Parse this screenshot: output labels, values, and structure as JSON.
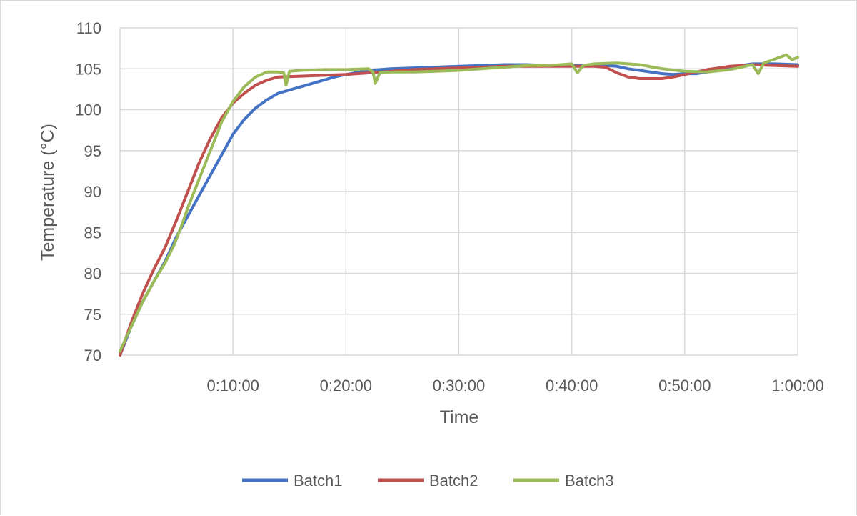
{
  "chart_data": {
    "type": "line",
    "title": "",
    "xlabel": "Time",
    "ylabel": "Temperature (°C)",
    "xlim": [
      0,
      60
    ],
    "ylim": [
      70,
      110
    ],
    "x_unit": "minutes",
    "x_ticks": [
      {
        "value": 10,
        "label": "0:10:00"
      },
      {
        "value": 20,
        "label": "0:20:00"
      },
      {
        "value": 30,
        "label": "0:30:00"
      },
      {
        "value": 40,
        "label": "0:40:00"
      },
      {
        "value": 50,
        "label": "0:50:00"
      },
      {
        "value": 60,
        "label": "1:00:00"
      }
    ],
    "y_ticks": [
      70,
      75,
      80,
      85,
      90,
      95,
      100,
      105,
      110
    ],
    "grid": true,
    "legend_position": "bottom",
    "series": [
      {
        "name": "Batch1",
        "color": "#4472C4",
        "points": [
          [
            0,
            70
          ],
          [
            1,
            73.5
          ],
          [
            2,
            76.5
          ],
          [
            3,
            79
          ],
          [
            4,
            81.5
          ],
          [
            5,
            84.5
          ],
          [
            6,
            87
          ],
          [
            7,
            89.5
          ],
          [
            8,
            92
          ],
          [
            9,
            94.5
          ],
          [
            10,
            97
          ],
          [
            11,
            98.8
          ],
          [
            12,
            100.2
          ],
          [
            13,
            101.2
          ],
          [
            14,
            102
          ],
          [
            15,
            102.4
          ],
          [
            16,
            102.8
          ],
          [
            17,
            103.2
          ],
          [
            18,
            103.6
          ],
          [
            19,
            104
          ],
          [
            20,
            104.3
          ],
          [
            22,
            104.8
          ],
          [
            24,
            105
          ],
          [
            26,
            105.1
          ],
          [
            28,
            105.2
          ],
          [
            30,
            105.3
          ],
          [
            32,
            105.4
          ],
          [
            34,
            105.5
          ],
          [
            36,
            105.5
          ],
          [
            38,
            105.4
          ],
          [
            40,
            105.4
          ],
          [
            42,
            105.5
          ],
          [
            44,
            105.3
          ],
          [
            45,
            105
          ],
          [
            46,
            104.8
          ],
          [
            47,
            104.6
          ],
          [
            48,
            104.4
          ],
          [
            49,
            104.3
          ],
          [
            50,
            104.4
          ],
          [
            51,
            104.4
          ],
          [
            52,
            104.6
          ],
          [
            53,
            104.9
          ],
          [
            54,
            105.2
          ],
          [
            55,
            105.4
          ],
          [
            56,
            105.6
          ],
          [
            58,
            105.6
          ],
          [
            60,
            105.5
          ]
        ]
      },
      {
        "name": "Batch2",
        "color": "#C0504D",
        "points": [
          [
            0,
            70
          ],
          [
            1,
            74
          ],
          [
            2,
            77.5
          ],
          [
            3,
            80.5
          ],
          [
            4,
            83.2
          ],
          [
            5,
            86.5
          ],
          [
            6,
            90
          ],
          [
            7,
            93.5
          ],
          [
            8,
            96.5
          ],
          [
            9,
            99
          ],
          [
            10,
            100.8
          ],
          [
            11,
            102
          ],
          [
            12,
            103
          ],
          [
            13,
            103.6
          ],
          [
            14,
            104
          ],
          [
            16,
            104.1
          ],
          [
            18,
            104.2
          ],
          [
            20,
            104.3
          ],
          [
            22,
            104.5
          ],
          [
            24,
            104.7
          ],
          [
            26,
            104.9
          ],
          [
            28,
            105
          ],
          [
            30,
            105.1
          ],
          [
            32,
            105.2
          ],
          [
            34,
            105.3
          ],
          [
            36,
            105.3
          ],
          [
            38,
            105.3
          ],
          [
            40,
            105.3
          ],
          [
            42,
            105.3
          ],
          [
            43,
            105.2
          ],
          [
            44,
            104.5
          ],
          [
            45,
            104
          ],
          [
            46,
            103.8
          ],
          [
            48,
            103.8
          ],
          [
            49,
            104
          ],
          [
            50,
            104.3
          ],
          [
            51,
            104.6
          ],
          [
            52,
            104.9
          ],
          [
            53,
            105.1
          ],
          [
            54,
            105.3
          ],
          [
            55,
            105.4
          ],
          [
            56,
            105.5
          ],
          [
            58,
            105.4
          ],
          [
            60,
            105.3
          ]
        ]
      },
      {
        "name": "Batch3",
        "color": "#9BBB59",
        "points": [
          [
            0,
            70.5
          ],
          [
            1,
            73.5
          ],
          [
            2,
            76.5
          ],
          [
            3,
            79
          ],
          [
            4,
            81.3
          ],
          [
            4.8,
            83.5
          ],
          [
            5.5,
            86
          ],
          [
            6,
            88
          ],
          [
            7,
            91.5
          ],
          [
            8,
            95
          ],
          [
            9,
            98.5
          ],
          [
            10,
            101
          ],
          [
            11,
            102.8
          ],
          [
            12,
            104
          ],
          [
            13,
            104.6
          ],
          [
            14,
            104.6
          ],
          [
            14.5,
            104.5
          ],
          [
            14.7,
            103
          ],
          [
            15,
            104.7
          ],
          [
            16,
            104.8
          ],
          [
            18,
            104.9
          ],
          [
            20,
            104.9
          ],
          [
            22,
            105
          ],
          [
            22.4,
            104.6
          ],
          [
            22.6,
            103.2
          ],
          [
            23,
            104.5
          ],
          [
            24,
            104.6
          ],
          [
            26,
            104.6
          ],
          [
            28,
            104.7
          ],
          [
            30,
            104.8
          ],
          [
            32,
            105
          ],
          [
            34,
            105.2
          ],
          [
            36,
            105.4
          ],
          [
            38,
            105.4
          ],
          [
            40,
            105.6
          ],
          [
            40.5,
            104.5
          ],
          [
            41,
            105.4
          ],
          [
            42,
            105.6
          ],
          [
            44,
            105.7
          ],
          [
            46,
            105.5
          ],
          [
            48,
            105
          ],
          [
            50,
            104.7
          ],
          [
            52,
            104.6
          ],
          [
            54,
            104.9
          ],
          [
            56,
            105.5
          ],
          [
            56.5,
            104.4
          ],
          [
            57,
            105.7
          ],
          [
            58,
            106.2
          ],
          [
            59,
            106.7
          ],
          [
            59.5,
            106.1
          ],
          [
            60,
            106.4
          ]
        ]
      }
    ]
  }
}
